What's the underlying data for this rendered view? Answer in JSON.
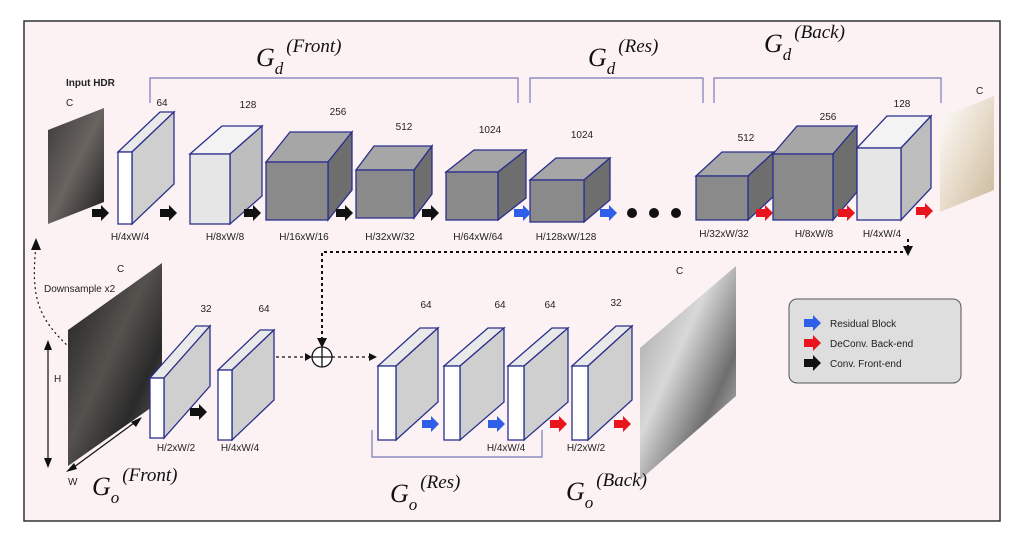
{
  "input_label": "Input  HDR",
  "channel_label": "C",
  "downsample_label": "Downsample  x2",
  "h_label": "H",
  "w_label": "W",
  "plus_symbol": "⊕",
  "gd": {
    "base": "G",
    "sub": "d",
    "front": "(Front)",
    "res": "(Res)",
    "back": "(Back)"
  },
  "go": {
    "base": "G",
    "sub": "o",
    "front": "(Front)",
    "res": "(Res)",
    "back": "(Back)"
  },
  "top_blocks": [
    {
      "ch": "64",
      "size": "H/4xW/4",
      "shade": "white"
    },
    {
      "ch": "128",
      "size": "H/8xW/8",
      "shade": "light"
    },
    {
      "ch": "256",
      "size": "H/16xW/16",
      "shade": "dark"
    },
    {
      "ch": "512",
      "size": "H/32xW/32",
      "shade": "dark"
    },
    {
      "ch": "1024",
      "size": "H/64xW/64",
      "shade": "dark"
    },
    {
      "ch": "1024",
      "size": "H/128xW/128",
      "shade": "dark"
    },
    {
      "ch": "512",
      "size": "H/32xW/32",
      "shade": "dark"
    },
    {
      "ch": "256",
      "size": "H/8xW/8",
      "shade": "dark"
    },
    {
      "ch": "128",
      "size": "H/4xW/4",
      "shade": "light"
    }
  ],
  "bottom_blocks": [
    {
      "ch": "32",
      "size": "H/2xW/2"
    },
    {
      "ch": "64",
      "size": "H/4xW/4"
    },
    {
      "ch": "64",
      "size": ""
    },
    {
      "ch": "64",
      "size": ""
    },
    {
      "ch": "64",
      "size": "H/4xW/4"
    },
    {
      "ch": "32",
      "size": "H/2xW/2"
    }
  ],
  "legend": [
    {
      "label": "Residual  Block",
      "color": "#2f5fe8"
    },
    {
      "label": "DeConv.  Back-end",
      "color": "#e8141e"
    },
    {
      "label": "Conv.  Front-end",
      "color": "#111111"
    }
  ],
  "colors": {
    "background": "#fcf2f3",
    "block_edge": "#2a2f8c",
    "bracket": "#7a7ab8",
    "conv": "#111111",
    "res": "#2f5fe8",
    "deconv": "#e8141e"
  }
}
